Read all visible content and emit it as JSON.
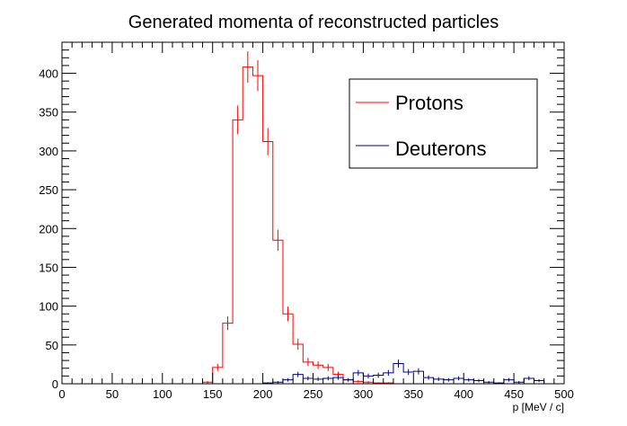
{
  "chart_data": {
    "type": "histogram",
    "title": "Generated momenta of reconstructed particles",
    "xlabel": "p [MeV / c]",
    "ylabel": "",
    "xlim": [
      0,
      500
    ],
    "ylim": [
      0,
      440
    ],
    "x_ticks": [
      0,
      50,
      100,
      150,
      200,
      250,
      300,
      350,
      400,
      450,
      500
    ],
    "y_ticks": [
      0,
      50,
      100,
      150,
      200,
      250,
      300,
      350,
      400
    ],
    "bin_width": 10,
    "bin_edges_start": 0,
    "grid": false,
    "legend_position": "top-right",
    "series": [
      {
        "name": "Protons",
        "color": "#ff0000",
        "values": [
          0,
          0,
          0,
          0,
          0,
          0,
          0,
          0,
          0,
          0,
          0,
          0,
          0,
          0,
          2,
          21,
          78,
          340,
          408,
          397,
          312,
          185,
          90,
          51,
          28,
          24,
          21,
          12,
          5,
          3,
          2,
          1,
          1,
          0,
          0,
          0,
          0,
          0,
          0,
          0,
          0,
          0,
          0,
          0,
          0,
          0,
          0,
          0,
          0,
          0
        ]
      },
      {
        "name": "Deuterons",
        "color": "#00008b",
        "values": [
          0,
          0,
          0,
          0,
          0,
          0,
          0,
          0,
          0,
          0,
          0,
          0,
          0,
          0,
          0,
          0,
          0,
          0,
          0,
          0,
          1,
          2,
          5,
          12,
          7,
          6,
          7,
          8,
          5,
          14,
          10,
          11,
          14,
          26,
          15,
          16,
          8,
          6,
          5,
          7,
          5,
          4,
          2,
          1,
          5,
          2,
          7,
          4,
          0,
          0
        ]
      }
    ]
  }
}
